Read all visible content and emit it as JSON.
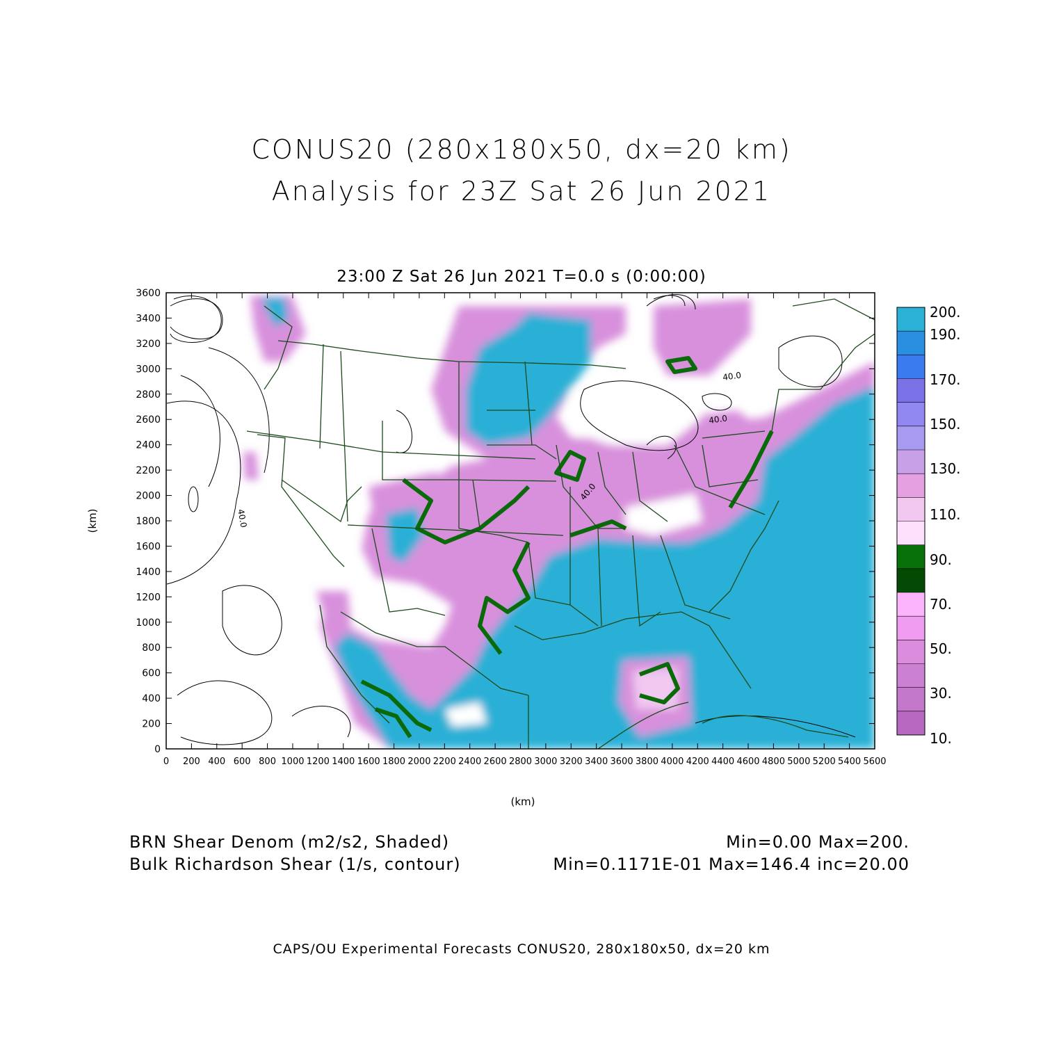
{
  "header": {
    "title_line1": "CONUS20 (280x180x50, dx=20 km)",
    "title_line2": "Analysis for 23Z Sat 26 Jun 2021",
    "time_line": "23:00 Z Sat 26 Jun 2021    T=0.0 s (0:00:00)"
  },
  "axes": {
    "x_label": "(km)",
    "y_label": "(km)",
    "x_ticks": [
      "0",
      "200",
      "400",
      "600",
      "800",
      "1000",
      "1200",
      "1400",
      "1600",
      "1800",
      "2000",
      "2200",
      "2400",
      "2600",
      "2800",
      "3000",
      "3200",
      "3400",
      "3600",
      "3800",
      "4000",
      "4200",
      "4400",
      "4600",
      "4800",
      "5000",
      "5200",
      "5400",
      "5600"
    ],
    "y_ticks": [
      "0",
      "200",
      "400",
      "600",
      "800",
      "1000",
      "1200",
      "1400",
      "1600",
      "1800",
      "2000",
      "2200",
      "2400",
      "2600",
      "2800",
      "3000",
      "3200",
      "3400",
      "3600"
    ],
    "x_range": [
      0,
      5600
    ],
    "y_range": [
      0,
      3600
    ]
  },
  "colorbar": {
    "labels": [
      "200.",
      "190.",
      "170.",
      "150.",
      "130.",
      "110.",
      "90.",
      "70.",
      "50.",
      "30.",
      "10."
    ],
    "colors": [
      "#2bb0d6",
      "#2a8fe0",
      "#3b7bf0",
      "#7b72e8",
      "#9088f0",
      "#a89af0",
      "#c8a0e8",
      "#e4a0e0",
      "#f0c8f0",
      "#fce0fc",
      "#087008",
      "#044a04",
      "#fcb4fc",
      "#f09cf0",
      "#dc8cdc",
      "#cc80d4",
      "#c478cc",
      "#b868c0"
    ]
  },
  "map_colors": {
    "cyan": "#2bb0d6",
    "magenta": "#d890dc",
    "light_magenta": "#e8a8ec",
    "dark_green": "#0a6a0a",
    "border": "#1a4a1a"
  },
  "contour_labels": [
    "40.0",
    "40.0",
    "40.0",
    "40.0"
  ],
  "footer": {
    "shaded_desc": "BRN Shear Denom (m2/s2, Shaded)",
    "contour_desc": "Bulk Richardson Shear (1/s, contour)",
    "shaded_range": "Min=0.00 Max=200.",
    "contour_range": "Min=0.1171E-01 Max=146.4 inc=20.00",
    "credit": "CAPS/OU Experimental Forecasts  CONUS20, 280x180x50, dx=20 km"
  }
}
